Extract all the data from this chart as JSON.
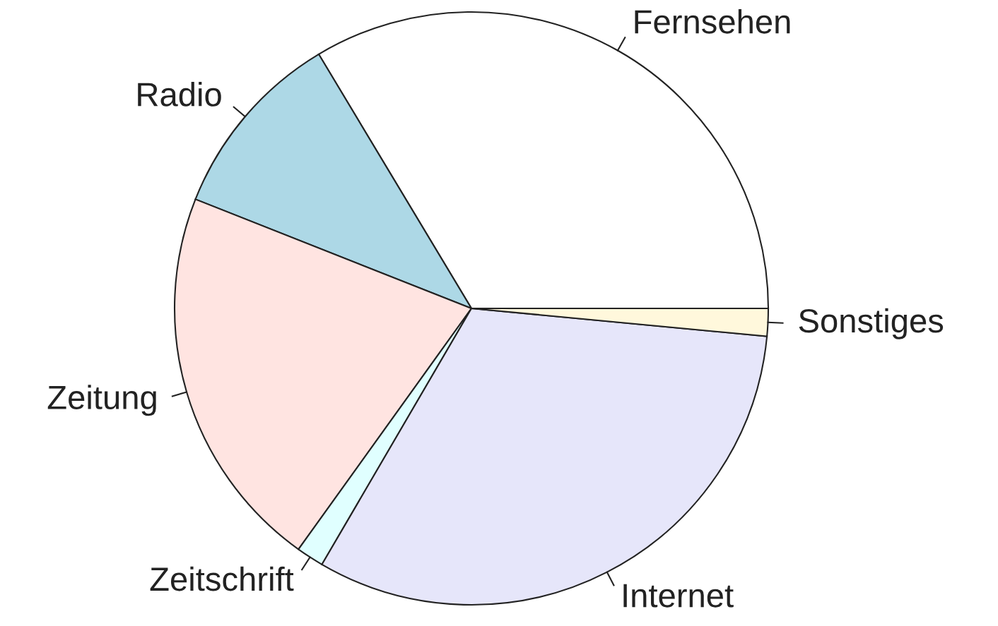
{
  "chart_data": {
    "type": "pie",
    "categories": [
      "Fernsehen",
      "Radio",
      "Zeitung",
      "Zeitschrift",
      "Internet",
      "Sonstiges"
    ],
    "values": [
      33.6,
      10.4,
      21.1,
      1.5,
      31.9,
      1.5
    ],
    "colors": [
      "#ffffff",
      "#add8e6",
      "#ffe4e1",
      "#e0ffff",
      "#e6e6fa",
      "#fff8dc"
    ]
  }
}
